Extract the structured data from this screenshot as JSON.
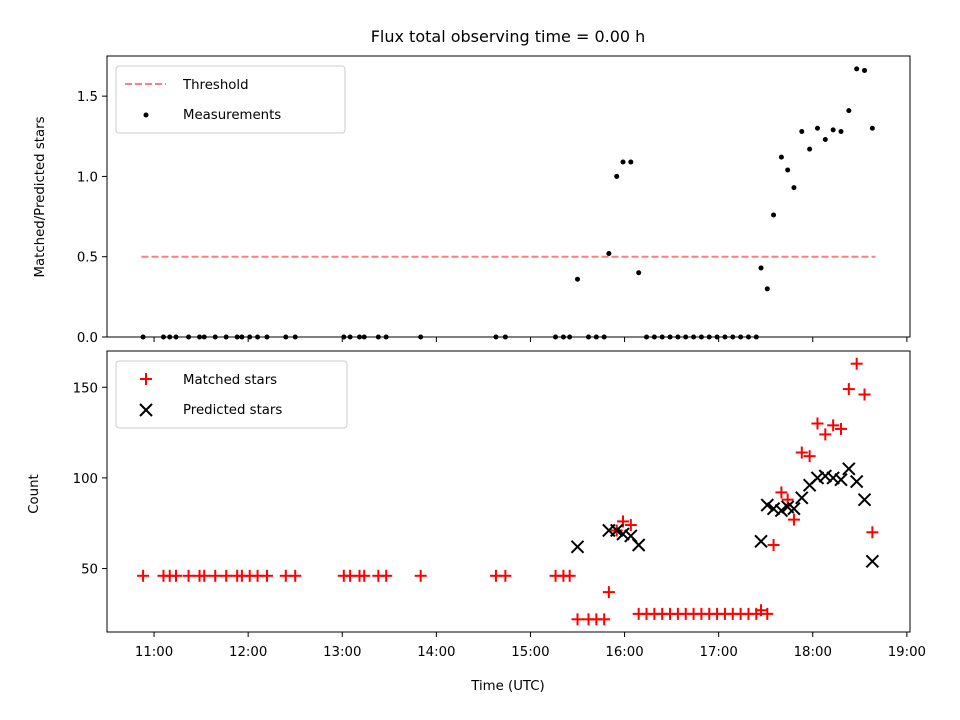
{
  "chart_data": [
    {
      "type": "scatter",
      "title": "Flux total observing time = 0.00 h",
      "xlabel": "",
      "ylabel": "Matched/Predicted stars",
      "ylim": [
        0.0,
        1.75
      ],
      "xlim": [
        "10:30",
        "19:02"
      ],
      "yticks": [
        0.0,
        0.5,
        1.0,
        1.5
      ],
      "ytick_labels": [
        "0.0",
        "0.5",
        "1.0",
        "1.5"
      ],
      "legend_position": "top-left",
      "threshold": {
        "name": "Threshold",
        "y": 0.5,
        "x_start": "10:52",
        "x_end": "18:40",
        "color": "#ff7f7f"
      },
      "series": [
        {
          "name": "Measurements",
          "color": "#000000",
          "marker": "dot",
          "points": [
            [
              "10:53",
              0.0
            ],
            [
              "11:06",
              0.0
            ],
            [
              "11:10",
              0.0
            ],
            [
              "11:14",
              0.0
            ],
            [
              "11:22",
              0.0
            ],
            [
              "11:29",
              0.0
            ],
            [
              "11:32",
              0.0
            ],
            [
              "11:39",
              0.0
            ],
            [
              "11:46",
              0.0
            ],
            [
              "11:53",
              0.0
            ],
            [
              "11:56",
              0.0
            ],
            [
              "12:01",
              0.0
            ],
            [
              "12:06",
              0.0
            ],
            [
              "12:12",
              0.0
            ],
            [
              "12:24",
              0.0
            ],
            [
              "12:30",
              0.0
            ],
            [
              "13:01",
              0.0
            ],
            [
              "13:05",
              0.0
            ],
            [
              "13:11",
              0.0
            ],
            [
              "13:14",
              0.0
            ],
            [
              "13:23",
              0.0
            ],
            [
              "13:28",
              0.0
            ],
            [
              "13:50",
              0.0
            ],
            [
              "14:38",
              0.0
            ],
            [
              "14:44",
              0.0
            ],
            [
              "15:16",
              0.0
            ],
            [
              "15:21",
              0.0
            ],
            [
              "15:25",
              0.0
            ],
            [
              "15:30",
              0.36
            ],
            [
              "15:37",
              0.0
            ],
            [
              "15:42",
              0.0
            ],
            [
              "15:47",
              0.0
            ],
            [
              "15:50",
              0.52
            ],
            [
              "15:55",
              1.0
            ],
            [
              "15:59",
              1.09
            ],
            [
              "16:04",
              1.09
            ],
            [
              "16:09",
              0.4
            ],
            [
              "16:14",
              0.0
            ],
            [
              "16:19",
              0.0
            ],
            [
              "16:24",
              0.0
            ],
            [
              "16:29",
              0.0
            ],
            [
              "16:34",
              0.0
            ],
            [
              "16:39",
              0.0
            ],
            [
              "16:44",
              0.0
            ],
            [
              "16:49",
              0.0
            ],
            [
              "16:54",
              0.0
            ],
            [
              "16:59",
              0.0
            ],
            [
              "17:04",
              0.0
            ],
            [
              "17:09",
              0.0
            ],
            [
              "17:14",
              0.0
            ],
            [
              "17:19",
              0.0
            ],
            [
              "17:24",
              0.0
            ],
            [
              "17:27",
              0.43
            ],
            [
              "17:31",
              0.3
            ],
            [
              "17:35",
              0.76
            ],
            [
              "17:40",
              1.12
            ],
            [
              "17:44",
              1.04
            ],
            [
              "17:48",
              0.93
            ],
            [
              "17:53",
              1.28
            ],
            [
              "17:58",
              1.17
            ],
            [
              "18:03",
              1.3
            ],
            [
              "18:08",
              1.23
            ],
            [
              "18:13",
              1.29
            ],
            [
              "18:18",
              1.28
            ],
            [
              "18:23",
              1.41
            ],
            [
              "18:28",
              1.67
            ],
            [
              "18:33",
              1.66
            ],
            [
              "18:38",
              1.3
            ]
          ]
        }
      ]
    },
    {
      "type": "scatter",
      "title": "",
      "xlabel": "Time (UTC)",
      "ylabel": "Count",
      "ylim": [
        15,
        170
      ],
      "xlim": [
        "10:30",
        "19:02"
      ],
      "yticks": [
        50,
        100,
        150
      ],
      "ytick_labels": [
        "50",
        "100",
        "150"
      ],
      "xticks": [
        "11:00",
        "12:00",
        "13:00",
        "14:00",
        "15:00",
        "16:00",
        "17:00",
        "18:00",
        "19:00"
      ],
      "legend_position": "top-left",
      "series": [
        {
          "name": "Matched stars",
          "color": "#ff0000",
          "marker": "plus",
          "points": [
            [
              "10:53",
              46
            ],
            [
              "11:06",
              46
            ],
            [
              "11:10",
              46
            ],
            [
              "11:14",
              46
            ],
            [
              "11:22",
              46
            ],
            [
              "11:29",
              46
            ],
            [
              "11:32",
              46
            ],
            [
              "11:39",
              46
            ],
            [
              "11:46",
              46
            ],
            [
              "11:53",
              46
            ],
            [
              "11:56",
              46
            ],
            [
              "12:01",
              46
            ],
            [
              "12:06",
              46
            ],
            [
              "12:12",
              46
            ],
            [
              "12:24",
              46
            ],
            [
              "12:30",
              46
            ],
            [
              "13:01",
              46
            ],
            [
              "13:05",
              46
            ],
            [
              "13:11",
              46
            ],
            [
              "13:14",
              46
            ],
            [
              "13:23",
              46
            ],
            [
              "13:28",
              46
            ],
            [
              "13:50",
              46
            ],
            [
              "14:38",
              46
            ],
            [
              "14:44",
              46
            ],
            [
              "15:16",
              46
            ],
            [
              "15:21",
              46
            ],
            [
              "15:25",
              46
            ],
            [
              "15:30",
              22
            ],
            [
              "15:37",
              22
            ],
            [
              "15:42",
              22
            ],
            [
              "15:47",
              22
            ],
            [
              "15:50",
              37
            ],
            [
              "15:55",
              71
            ],
            [
              "15:59",
              76
            ],
            [
              "16:04",
              74
            ],
            [
              "16:09",
              25
            ],
            [
              "16:14",
              25
            ],
            [
              "16:19",
              25
            ],
            [
              "16:24",
              25
            ],
            [
              "16:29",
              25
            ],
            [
              "16:34",
              25
            ],
            [
              "16:39",
              25
            ],
            [
              "16:44",
              25
            ],
            [
              "16:49",
              25
            ],
            [
              "16:54",
              25
            ],
            [
              "16:59",
              25
            ],
            [
              "17:04",
              25
            ],
            [
              "17:09",
              25
            ],
            [
              "17:14",
              25
            ],
            [
              "17:19",
              25
            ],
            [
              "17:24",
              25
            ],
            [
              "17:27",
              27
            ],
            [
              "17:31",
              25
            ],
            [
              "17:35",
              63
            ],
            [
              "17:40",
              92
            ],
            [
              "17:44",
              88
            ],
            [
              "17:48",
              77
            ],
            [
              "17:53",
              114
            ],
            [
              "17:58",
              112
            ],
            [
              "18:03",
              130
            ],
            [
              "18:08",
              124
            ],
            [
              "18:13",
              129
            ],
            [
              "18:18",
              127
            ],
            [
              "18:23",
              149
            ],
            [
              "18:28",
              163
            ],
            [
              "18:33",
              146
            ],
            [
              "18:38",
              70
            ]
          ]
        },
        {
          "name": "Predicted stars",
          "color": "#000000",
          "marker": "x",
          "points": [
            [
              "15:30",
              62
            ],
            [
              "15:50",
              71
            ],
            [
              "15:55",
              71
            ],
            [
              "15:59",
              69
            ],
            [
              "16:04",
              68
            ],
            [
              "16:09",
              63
            ],
            [
              "17:27",
              65
            ],
            [
              "17:31",
              85
            ],
            [
              "17:35",
              83
            ],
            [
              "17:40",
              82
            ],
            [
              "17:44",
              84
            ],
            [
              "17:48",
              83
            ],
            [
              "17:53",
              89
            ],
            [
              "17:58",
              96
            ],
            [
              "18:03",
              100
            ],
            [
              "18:08",
              101
            ],
            [
              "18:13",
              100
            ],
            [
              "18:18",
              99
            ],
            [
              "18:23",
              105
            ],
            [
              "18:28",
              98
            ],
            [
              "18:33",
              88
            ],
            [
              "18:38",
              54
            ]
          ]
        }
      ]
    }
  ]
}
